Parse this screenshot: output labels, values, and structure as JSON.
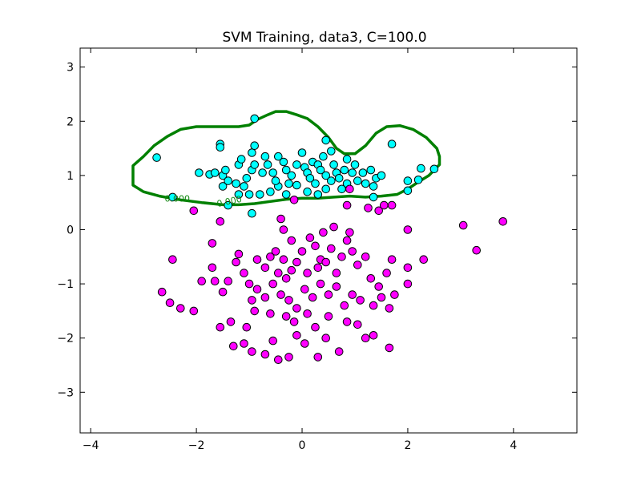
{
  "chart_data": {
    "type": "scatter",
    "title": "SVM Training, data3, C=100.0",
    "xlabel": "",
    "ylabel": "",
    "xlim": [
      -4.2,
      5.2
    ],
    "ylim": [
      -3.75,
      3.35
    ],
    "xticks": [
      -4,
      -2,
      0,
      2,
      4
    ],
    "yticks": [
      -3,
      -2,
      -1,
      0,
      1,
      2,
      3
    ],
    "xtick_labels": [
      "−4",
      "−2",
      "0",
      "2",
      "4"
    ],
    "ytick_labels": [
      "−3",
      "−2",
      "−1",
      "0",
      "1",
      "2",
      "3"
    ],
    "grid": false,
    "colors": {
      "class_pos": "#00ffff",
      "class_neg": "#ff00ff",
      "boundary": "#008000",
      "marker_edge": "#000000"
    },
    "contour_labels": [
      "0.000",
      "0.000"
    ],
    "decision_boundary": [
      [
        -1.2,
        1.9
      ],
      [
        -1.0,
        1.93
      ],
      [
        -0.85,
        2.03
      ],
      [
        -0.65,
        2.12
      ],
      [
        -0.5,
        2.18
      ],
      [
        -0.3,
        2.18
      ],
      [
        -0.1,
        2.12
      ],
      [
        0.1,
        2.05
      ],
      [
        0.3,
        1.9
      ],
      [
        0.5,
        1.7
      ],
      [
        0.65,
        1.5
      ],
      [
        0.8,
        1.4
      ],
      [
        1.0,
        1.4
      ],
      [
        1.2,
        1.55
      ],
      [
        1.4,
        1.78
      ],
      [
        1.6,
        1.9
      ],
      [
        1.85,
        1.92
      ],
      [
        2.1,
        1.85
      ],
      [
        2.35,
        1.7
      ],
      [
        2.55,
        1.5
      ],
      [
        2.6,
        1.35
      ],
      [
        2.6,
        1.2
      ],
      [
        2.4,
        1.0
      ],
      [
        2.2,
        0.88
      ],
      [
        2.0,
        0.75
      ],
      [
        1.8,
        0.65
      ],
      [
        1.5,
        0.62
      ],
      [
        1.2,
        0.6
      ],
      [
        0.9,
        0.62
      ],
      [
        0.6,
        0.6
      ],
      [
        0.3,
        0.58
      ],
      [
        0.0,
        0.58
      ],
      [
        -0.3,
        0.56
      ],
      [
        -0.6,
        0.52
      ],
      [
        -0.9,
        0.48
      ],
      [
        -1.2,
        0.46
      ],
      [
        -1.5,
        0.46
      ],
      [
        -1.9,
        0.5
      ],
      [
        -2.3,
        0.55
      ],
      [
        -2.7,
        0.62
      ],
      [
        -3.0,
        0.7
      ],
      [
        -3.2,
        0.82
      ],
      [
        -3.2,
        1.05
      ],
      [
        -3.2,
        1.18
      ],
      [
        -3.0,
        1.35
      ],
      [
        -2.8,
        1.55
      ],
      [
        -2.55,
        1.72
      ],
      [
        -2.3,
        1.85
      ],
      [
        -2.0,
        1.9
      ],
      [
        -1.6,
        1.9
      ],
      [
        -1.2,
        1.9
      ]
    ],
    "series": [
      {
        "label_class": "positive",
        "points": [
          [
            -2.75,
            1.33
          ],
          [
            -1.55,
            1.58
          ],
          [
            -1.55,
            1.52
          ],
          [
            -1.95,
            1.05
          ],
          [
            -1.75,
            1.02
          ],
          [
            -1.65,
            1.05
          ],
          [
            -1.5,
            1.0
          ],
          [
            -1.45,
            1.1
          ],
          [
            -1.5,
            0.8
          ],
          [
            -1.25,
            0.85
          ],
          [
            -1.1,
            0.8
          ],
          [
            -1.05,
            0.95
          ],
          [
            -0.95,
            1.1
          ],
          [
            -0.9,
            1.2
          ],
          [
            -1.2,
            1.2
          ],
          [
            -1.15,
            1.3
          ],
          [
            -0.95,
            1.42
          ],
          [
            -0.9,
            1.55
          ],
          [
            -0.7,
            1.35
          ],
          [
            -0.65,
            1.2
          ],
          [
            -0.75,
            1.05
          ],
          [
            -0.55,
            1.05
          ],
          [
            -0.45,
            1.35
          ],
          [
            -0.35,
            1.25
          ],
          [
            -0.3,
            1.1
          ],
          [
            -0.2,
            1.0
          ],
          [
            -0.1,
            1.2
          ],
          [
            0.0,
            1.42
          ],
          [
            0.05,
            1.15
          ],
          [
            0.1,
            1.05
          ],
          [
            0.15,
            0.95
          ],
          [
            0.2,
            1.25
          ],
          [
            0.3,
            1.2
          ],
          [
            0.35,
            1.1
          ],
          [
            0.4,
            1.35
          ],
          [
            0.45,
            1.0
          ],
          [
            0.55,
            1.45
          ],
          [
            0.6,
            1.2
          ],
          [
            0.65,
            1.05
          ],
          [
            0.7,
            0.95
          ],
          [
            0.8,
            1.1
          ],
          [
            0.85,
            1.3
          ],
          [
            0.95,
            1.05
          ],
          [
            1.0,
            1.2
          ],
          [
            1.05,
            0.9
          ],
          [
            1.15,
            1.05
          ],
          [
            1.2,
            0.85
          ],
          [
            1.3,
            1.1
          ],
          [
            1.4,
            0.95
          ],
          [
            1.5,
            1.0
          ],
          [
            1.35,
            0.8
          ],
          [
            1.7,
            1.58
          ],
          [
            2.0,
            0.9
          ],
          [
            2.2,
            0.92
          ],
          [
            2.25,
            1.13
          ],
          [
            2.5,
            1.12
          ],
          [
            2.0,
            0.72
          ],
          [
            1.35,
            0.6
          ],
          [
            0.85,
            0.85
          ],
          [
            0.45,
            0.75
          ],
          [
            0.3,
            0.65
          ],
          [
            0.1,
            0.7
          ],
          [
            -0.1,
            0.82
          ],
          [
            -0.3,
            0.65
          ],
          [
            -0.45,
            0.8
          ],
          [
            -0.6,
            0.7
          ],
          [
            -0.8,
            0.65
          ],
          [
            -1.0,
            0.65
          ],
          [
            -1.2,
            0.65
          ],
          [
            -1.4,
            0.9
          ],
          [
            -2.45,
            0.6
          ],
          [
            -1.4,
            0.45
          ],
          [
            -0.95,
            0.3
          ],
          [
            -0.9,
            2.05
          ],
          [
            0.45,
            1.65
          ],
          [
            -0.5,
            0.9
          ],
          [
            -0.25,
            0.85
          ],
          [
            0.25,
            0.85
          ],
          [
            0.55,
            0.9
          ],
          [
            0.75,
            0.75
          ]
        ]
      },
      {
        "label_class": "negative",
        "points": [
          [
            -2.45,
            -0.55
          ],
          [
            -2.65,
            -1.15
          ],
          [
            -2.5,
            -1.35
          ],
          [
            -2.3,
            -1.45
          ],
          [
            -2.05,
            -1.5
          ],
          [
            -1.9,
            -0.95
          ],
          [
            -1.7,
            -0.7
          ],
          [
            -1.65,
            -0.95
          ],
          [
            -1.5,
            -1.15
          ],
          [
            -1.4,
            -0.95
          ],
          [
            -1.25,
            -0.6
          ],
          [
            -1.1,
            -0.8
          ],
          [
            -1.0,
            -1.0
          ],
          [
            -0.95,
            -1.3
          ],
          [
            -0.9,
            -1.5
          ],
          [
            -1.05,
            -1.8
          ],
          [
            -1.35,
            -1.7
          ],
          [
            -1.55,
            -1.8
          ],
          [
            -1.3,
            -2.15
          ],
          [
            -1.1,
            -2.1
          ],
          [
            -0.95,
            -2.25
          ],
          [
            -0.7,
            -2.3
          ],
          [
            -0.55,
            -2.05
          ],
          [
            -0.45,
            -2.4
          ],
          [
            -0.25,
            -2.35
          ],
          [
            -0.1,
            -1.95
          ],
          [
            0.05,
            -2.1
          ],
          [
            0.3,
            -2.35
          ],
          [
            0.45,
            -2.0
          ],
          [
            0.7,
            -2.25
          ],
          [
            0.85,
            -1.7
          ],
          [
            1.05,
            -1.75
          ],
          [
            1.2,
            -2.0
          ],
          [
            1.35,
            -1.95
          ],
          [
            1.65,
            -2.18
          ],
          [
            -0.85,
            -0.55
          ],
          [
            -0.7,
            -0.7
          ],
          [
            -0.6,
            -0.5
          ],
          [
            -0.45,
            -0.8
          ],
          [
            -0.35,
            -0.55
          ],
          [
            -0.2,
            -0.75
          ],
          [
            -0.1,
            -0.6
          ],
          [
            0.0,
            -0.4
          ],
          [
            0.1,
            -0.8
          ],
          [
            0.25,
            -0.3
          ],
          [
            0.35,
            -0.55
          ],
          [
            0.45,
            -0.6
          ],
          [
            0.55,
            -0.35
          ],
          [
            0.65,
            -0.8
          ],
          [
            0.75,
            -0.5
          ],
          [
            0.85,
            -0.2
          ],
          [
            0.95,
            -0.4
          ],
          [
            1.05,
            -0.65
          ],
          [
            1.2,
            -0.5
          ],
          [
            1.3,
            -0.9
          ],
          [
            1.45,
            -1.05
          ],
          [
            1.6,
            -0.8
          ],
          [
            1.75,
            -1.2
          ],
          [
            2.0,
            -1.0
          ],
          [
            2.0,
            -0.7
          ],
          [
            2.0,
            0.0
          ],
          [
            2.3,
            -0.55
          ],
          [
            1.65,
            -1.45
          ],
          [
            1.5,
            -1.25
          ],
          [
            1.35,
            -1.4
          ],
          [
            1.1,
            -1.3
          ],
          [
            0.95,
            -1.2
          ],
          [
            0.8,
            -1.4
          ],
          [
            0.65,
            -1.05
          ],
          [
            0.5,
            -1.2
          ],
          [
            0.35,
            -1.0
          ],
          [
            0.2,
            -1.25
          ],
          [
            0.05,
            -1.1
          ],
          [
            -0.1,
            -1.45
          ],
          [
            -0.25,
            -1.3
          ],
          [
            -0.4,
            -1.2
          ],
          [
            -0.55,
            -1.0
          ],
          [
            -0.7,
            -1.25
          ],
          [
            -0.85,
            -1.1
          ],
          [
            -0.3,
            -1.6
          ],
          [
            -0.15,
            -1.7
          ],
          [
            0.1,
            -1.55
          ],
          [
            0.25,
            -1.8
          ],
          [
            0.5,
            -1.6
          ],
          [
            -0.6,
            -1.55
          ],
          [
            -0.4,
            0.2
          ],
          [
            -0.35,
            0.0
          ],
          [
            -0.2,
            -0.2
          ],
          [
            0.15,
            -0.15
          ],
          [
            0.4,
            -0.05
          ],
          [
            0.6,
            0.05
          ],
          [
            0.85,
            0.45
          ],
          [
            1.25,
            0.4
          ],
          [
            1.45,
            0.35
          ],
          [
            1.55,
            0.45
          ],
          [
            0.9,
            -0.05
          ],
          [
            -1.55,
            0.15
          ],
          [
            -2.05,
            0.35
          ],
          [
            -1.7,
            -0.25
          ],
          [
            -1.2,
            -0.45
          ],
          [
            -0.15,
            0.55
          ],
          [
            3.05,
            0.08
          ],
          [
            3.3,
            -0.38
          ],
          [
            3.8,
            0.15
          ],
          [
            0.9,
            0.75
          ],
          [
            1.7,
            0.45
          ],
          [
            -0.5,
            -0.4
          ],
          [
            -0.3,
            -0.9
          ],
          [
            0.3,
            -0.7
          ],
          [
            1.7,
            -0.55
          ]
        ]
      }
    ]
  }
}
